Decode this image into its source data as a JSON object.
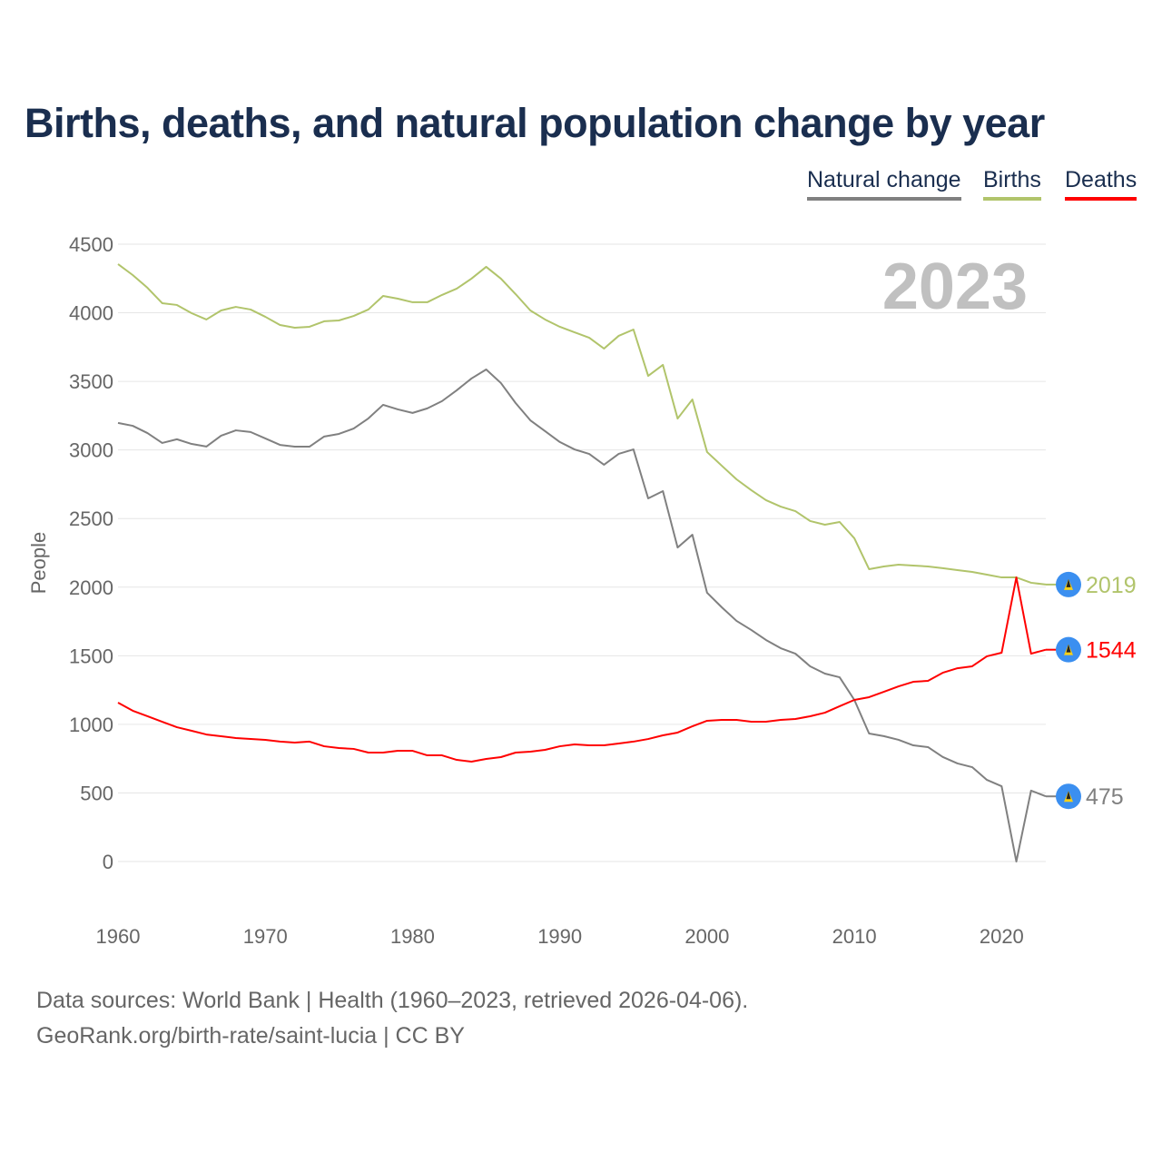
{
  "chart_data": {
    "type": "line",
    "title": "Births, deaths, and natural population change by year",
    "xlabel": "",
    "ylabel": "People",
    "xlim": [
      1960,
      2023
    ],
    "ylim": [
      0,
      4500
    ],
    "yticks": [
      "0",
      "500",
      "1000",
      "1500",
      "2000",
      "2500",
      "3000",
      "3500",
      "4000",
      "4500"
    ],
    "xticks": [
      "1960",
      "1970",
      "1980",
      "1990",
      "2000",
      "2010",
      "2020"
    ],
    "year_watermark": "2023",
    "legend_placement": "top-right",
    "x": [
      1960,
      1961,
      1962,
      1963,
      1964,
      1965,
      1966,
      1967,
      1968,
      1969,
      1970,
      1971,
      1972,
      1973,
      1974,
      1975,
      1976,
      1977,
      1978,
      1979,
      1980,
      1981,
      1982,
      1983,
      1984,
      1985,
      1986,
      1987,
      1988,
      1989,
      1990,
      1991,
      1992,
      1993,
      1994,
      1995,
      1996,
      1997,
      1998,
      1999,
      2000,
      2001,
      2002,
      2003,
      2004,
      2005,
      2006,
      2007,
      2008,
      2009,
      2010,
      2011,
      2012,
      2013,
      2014,
      2015,
      2016,
      2017,
      2018,
      2019,
      2020,
      2021,
      2022,
      2023
    ],
    "series": [
      {
        "name": "Natural change",
        "color": "#808080",
        "end_label": "475",
        "values": [
          3197,
          3176,
          3123,
          3051,
          3078,
          3044,
          3025,
          3104,
          3143,
          3131,
          3084,
          3037,
          3024,
          3024,
          3098,
          3117,
          3156,
          3230,
          3329,
          3296,
          3270,
          3303,
          3356,
          3435,
          3521,
          3587,
          3488,
          3342,
          3216,
          3137,
          3058,
          3004,
          2971,
          2892,
          2972,
          3004,
          2647,
          2700,
          2289,
          2382,
          1959,
          1853,
          1754,
          1688,
          1615,
          1555,
          1515,
          1423,
          1370,
          1343,
          1178,
          933,
          914,
          887,
          847,
          834,
          762,
          715,
          688,
          595,
          549,
          0,
          517,
          475
        ]
      },
      {
        "name": "Births",
        "color": "#b1c46b",
        "end_label": "2019",
        "values": [
          4355,
          4275,
          4182,
          4070,
          4057,
          3997,
          3951,
          4017,
          4043,
          4024,
          3971,
          3911,
          3891,
          3898,
          3938,
          3944,
          3977,
          4024,
          4123,
          4103,
          4077,
          4077,
          4130,
          4176,
          4249,
          4335,
          4249,
          4136,
          4017,
          3951,
          3898,
          3858,
          3818,
          3739,
          3832,
          3878,
          3540,
          3620,
          3229,
          3368,
          2985,
          2885,
          2786,
          2707,
          2634,
          2587,
          2554,
          2482,
          2455,
          2475,
          2356,
          2131,
          2151,
          2164,
          2157,
          2151,
          2138,
          2124,
          2111,
          2091,
          2071,
          2071,
          2032,
          2019
        ]
      },
      {
        "name": "Deaths",
        "color": "#ff0000",
        "end_label": "1544",
        "values": [
          1158,
          1099,
          1059,
          1019,
          979,
          953,
          926,
          913,
          900,
          893,
          887,
          874,
          867,
          874,
          840,
          827,
          821,
          794,
          794,
          807,
          807,
          774,
          774,
          741,
          728,
          748,
          761,
          794,
          801,
          814,
          840,
          854,
          847,
          847,
          860,
          874,
          893,
          920,
          940,
          986,
          1026,
          1032,
          1032,
          1019,
          1019,
          1032,
          1039,
          1059,
          1085,
          1132,
          1178,
          1198,
          1237,
          1277,
          1310,
          1317,
          1376,
          1409,
          1423,
          1496,
          1522,
          2071,
          1515,
          1544
        ]
      }
    ]
  },
  "footer": {
    "line1": "Data sources: World Bank | Health (1960–2023, retrieved 2026-04-06).",
    "line2": "GeoRank.org/birth-rate/saint-lucia | CC BY"
  }
}
